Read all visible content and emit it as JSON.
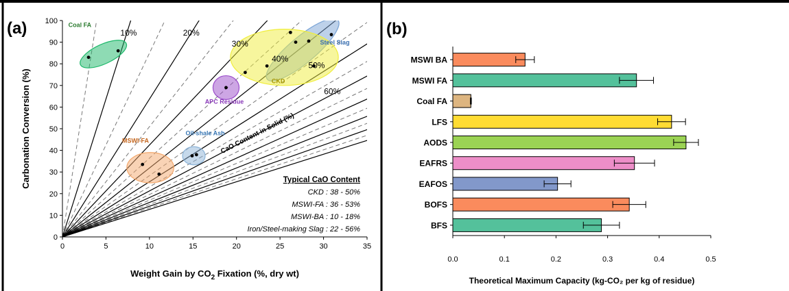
{
  "figure": {
    "panel_a_label": "(a)",
    "panel_b_label": "(b)"
  },
  "chart_data": [
    {
      "type": "scatter",
      "panel": "(a)",
      "xlabel_parts": [
        "Weight Gain by CO",
        "2",
        " Fixation (%, dry wt)"
      ],
      "ylabel": "Carbonation Conversion (%)",
      "xlim": [
        0,
        35
      ],
      "ylim": [
        0,
        100
      ],
      "xticks": [
        0,
        5,
        10,
        15,
        20,
        25,
        30,
        35
      ],
      "yticks": [
        0,
        10,
        20,
        30,
        40,
        50,
        60,
        70,
        80,
        90,
        100
      ],
      "grid": false,
      "solid_content_lines": [
        10,
        20,
        30,
        40,
        50,
        60,
        70,
        80,
        90,
        100
      ],
      "dashed_content_lines": [
        5,
        15,
        25,
        35,
        45,
        55,
        65,
        75,
        85,
        95
      ],
      "line_labels": [
        {
          "text": "10%",
          "x": 7.6,
          "y": 93
        },
        {
          "text": "20%",
          "x": 14.8,
          "y": 93
        },
        {
          "text": "30%",
          "x": 20.4,
          "y": 88
        },
        {
          "text": "40%",
          "x": 25.0,
          "y": 81
        },
        {
          "text": "50%",
          "x": 29.2,
          "y": 78
        },
        {
          "text": "60%",
          "x": 31.0,
          "y": 66
        }
      ],
      "diagonal_label": {
        "text": "CaO Content in Solid (%)",
        "x": 22.5,
        "y": 47,
        "angle_deg": -27
      },
      "groups": [
        {
          "name": "Coal FA",
          "color": "#1db86a",
          "label_color": "#2e7d32",
          "label_pos": [
            2.0,
            97
          ],
          "ellipse": {
            "cx": 4.7,
            "cy": 84.5,
            "rx": 2.9,
            "ry": 4.5,
            "angle": -25
          },
          "points": [
            {
              "x": 3.0,
              "y": 83
            },
            {
              "x": 6.4,
              "y": 86
            }
          ]
        },
        {
          "name": "Steel Slag",
          "color": "#7ba4d6",
          "label_color": "#3a6fb0",
          "label_pos": [
            31.3,
            89
          ],
          "ellipse": {
            "cx": 27.6,
            "cy": 86.5,
            "rx": 5.3,
            "ry": 6.0,
            "angle": -40
          },
          "points": [
            {
              "x": 26.8,
              "y": 90
            },
            {
              "x": 28.3,
              "y": 90.5
            },
            {
              "x": 30.9,
              "y": 93.5
            }
          ]
        },
        {
          "name": "CKD",
          "color": "#f0ee3c",
          "label_color": "#a49400",
          "label_pos": [
            24.8,
            71
          ],
          "ellipse": {
            "cx": 25.5,
            "cy": 83.0,
            "rx": 6.2,
            "ry": 13.0,
            "angle": 0
          },
          "points": [
            {
              "x": 21.0,
              "y": 76
            },
            {
              "x": 23.5,
              "y": 79
            },
            {
              "x": 26.2,
              "y": 94.5
            },
            {
              "x": 28.9,
              "y": 79
            }
          ]
        },
        {
          "name": "APC Residue",
          "color": "#9b4dca",
          "label_color": "#8a3ab9",
          "label_pos": [
            18.6,
            61.5
          ],
          "ellipse": {
            "cx": 18.8,
            "cy": 69.0,
            "rx": 1.5,
            "ry": 5.5,
            "angle": 0
          },
          "points": [
            {
              "x": 18.8,
              "y": 69
            }
          ]
        },
        {
          "name": "Oil-shale Ash",
          "color": "#8db4d8",
          "label_color": "#3a78b5",
          "label_pos": [
            16.4,
            47
          ],
          "ellipse": {
            "cx": 15.1,
            "cy": 37.5,
            "rx": 1.3,
            "ry": 4.2,
            "angle": 0
          },
          "points": [
            {
              "x": 14.9,
              "y": 37.5
            },
            {
              "x": 15.4,
              "y": 38
            }
          ]
        },
        {
          "name": "MSWI-FA",
          "color": "#f3a86c",
          "label_color": "#c4661e",
          "label_pos": [
            8.4,
            43.5
          ],
          "ellipse": {
            "cx": 10.1,
            "cy": 32.0,
            "rx": 2.7,
            "ry": 7.0,
            "angle": 0
          },
          "points": [
            {
              "x": 9.2,
              "y": 33.5
            },
            {
              "x": 11.1,
              "y": 29
            }
          ]
        }
      ],
      "content_table": {
        "title": "Typical CaO Content",
        "rows": [
          "CKD : 38 - 50%",
          "MSWI-FA : 36 - 53%",
          "MSWI-BA : 10 - 18%",
          "Iron/Steel-making Slag : 22 - 56%"
        ]
      }
    },
    {
      "type": "bar",
      "orientation": "horizontal",
      "panel": "(b)",
      "xlabel": "Theoretical Maximum Capacity (kg-CO₂ per kg of residue)",
      "ylabel": "",
      "xlim": [
        0,
        0.5
      ],
      "xticks": [
        "0.0",
        "0.1",
        "0.2",
        "0.3",
        "0.4",
        "0.5"
      ],
      "categories": [
        "MSWI BA",
        "MSWI FA",
        "Coal FA",
        "LFS",
        "AODS",
        "EAFRS",
        "EAFOS",
        "BOFS",
        "BFS"
      ],
      "values": [
        0.14,
        0.356,
        0.035,
        0.424,
        0.452,
        0.352,
        0.203,
        0.342,
        0.288
      ],
      "errors": [
        0.018,
        0.033,
        0.001,
        0.027,
        0.024,
        0.039,
        0.026,
        0.032,
        0.035
      ],
      "colors": [
        "#fa8b5d",
        "#54c19b",
        "#ddb580",
        "#ffdc33",
        "#9bd354",
        "#ed8ec8",
        "#8298ca",
        "#fa8b5d",
        "#54c19b"
      ]
    }
  ]
}
